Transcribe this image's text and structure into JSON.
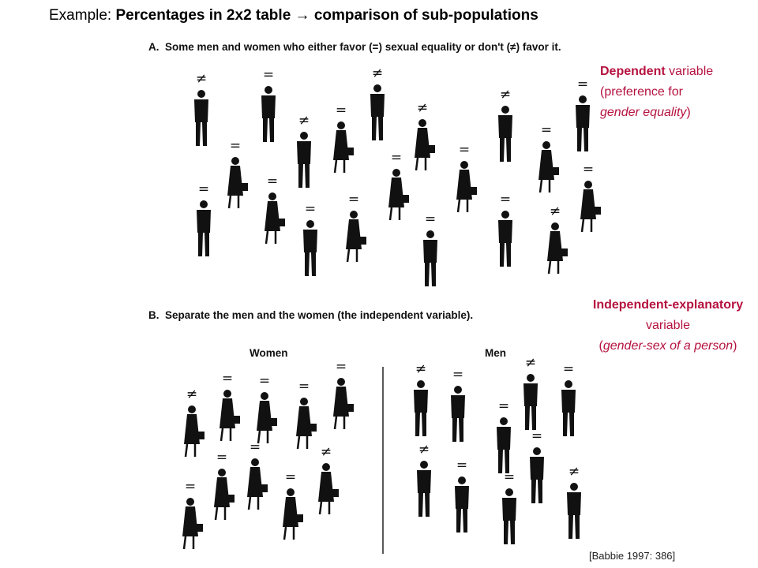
{
  "title_prefix": "Example:",
  "title": "Percentages in 2x2 table → comparison of sub-populations",
  "panel_a": {
    "label": "A.",
    "caption": "Some men and women who either favor (=) sexual equality or don't (≠) favor it.",
    "symbols": [
      "≠",
      "=",
      "=",
      "≠",
      "=",
      "=",
      "=",
      "≠",
      "=",
      "=",
      "=",
      "≠",
      "=",
      "=",
      "≠",
      "=",
      "=",
      "≠",
      "=",
      "="
    ]
  },
  "panel_b": {
    "label": "B.",
    "caption": "Separate the men and the women (the independent variable).",
    "women": {
      "label": "Women",
      "symbols": [
        "≠",
        "=",
        "=",
        "=",
        "=",
        "=",
        "=",
        "=",
        "=",
        "≠"
      ]
    },
    "men": {
      "label": "Men",
      "symbols": [
        "≠",
        "=",
        "=",
        "≠",
        "=",
        "≠",
        "=",
        "=",
        "=",
        "≠"
      ]
    }
  },
  "dependent": {
    "bold": "Dependent",
    "rest": "variable",
    "detail": [
      "(preference for",
      "gender equality",
      ")"
    ]
  },
  "independent": {
    "bold": "Independent-explanatory",
    "rest": "variable",
    "detail": [
      "(",
      "gender-sex of a person",
      ")"
    ]
  },
  "citation": "[Babbie 1997: 386]"
}
